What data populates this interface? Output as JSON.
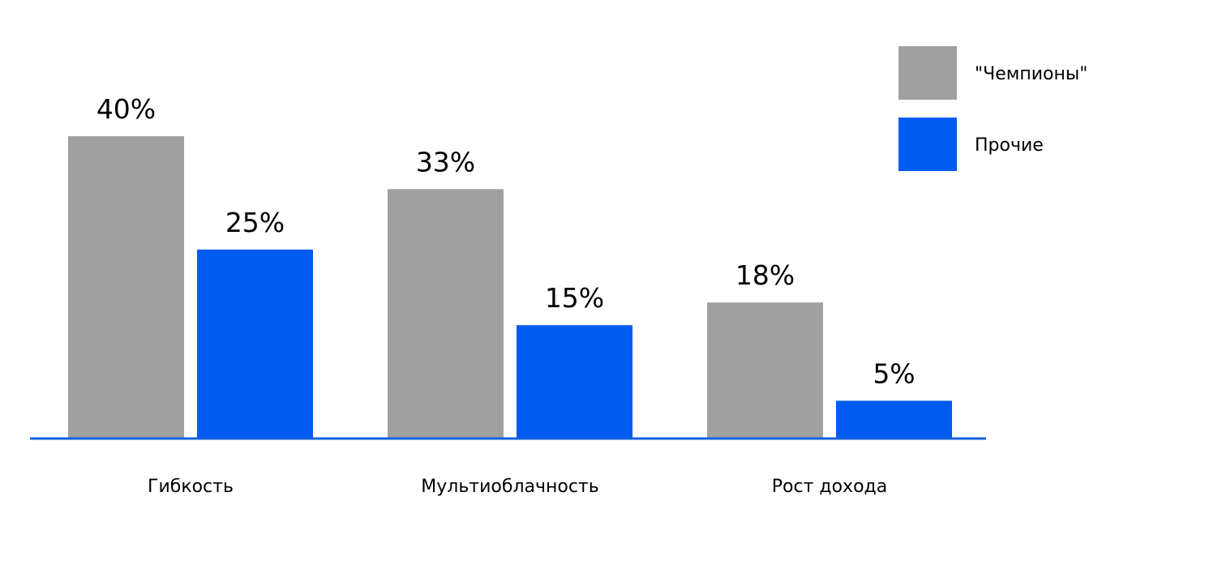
{
  "chart_data": {
    "type": "bar",
    "title": "",
    "xlabel": "",
    "ylabel": "",
    "categories": [
      "Гибкость",
      "Мультиоблачность",
      "Рост дохода"
    ],
    "series": [
      {
        "name": "\"Чемпионы\"",
        "color": "#a0a0a0",
        "values": [
          40,
          33,
          18
        ],
        "labels": [
          "40%",
          "33%",
          "18%"
        ]
      },
      {
        "name": "Прочие",
        "color": "#005cf0",
        "values": [
          25,
          15,
          5
        ],
        "labels": [
          "25%",
          "15%",
          "5%"
        ]
      }
    ],
    "ylim": [
      0,
      40
    ],
    "value_format": "percent",
    "grid": false,
    "axis_color": "#1560e0",
    "legend_position": "top-right"
  }
}
